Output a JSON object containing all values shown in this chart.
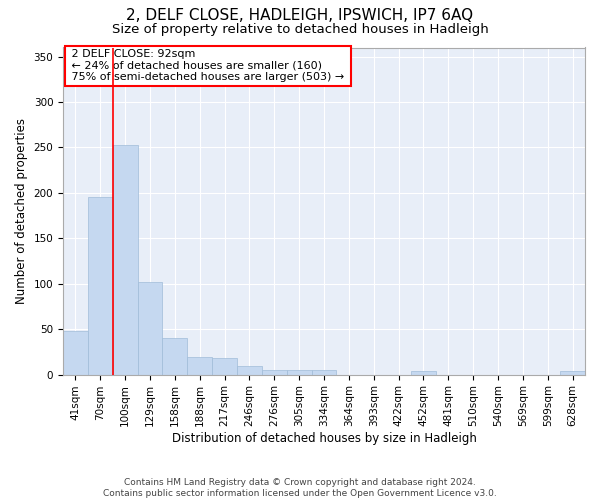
{
  "title1": "2, DELF CLOSE, HADLEIGH, IPSWICH, IP7 6AQ",
  "title2": "Size of property relative to detached houses in Hadleigh",
  "xlabel": "Distribution of detached houses by size in Hadleigh",
  "ylabel": "Number of detached properties",
  "footer1": "Contains HM Land Registry data © Crown copyright and database right 2024.",
  "footer2": "Contains public sector information licensed under the Open Government Licence v3.0.",
  "annotation_line1": "2 DELF CLOSE: 92sqm",
  "annotation_line2": "← 24% of detached houses are smaller (160)",
  "annotation_line3": "75% of semi-detached houses are larger (503) →",
  "bar_categories": [
    "41sqm",
    "70sqm",
    "100sqm",
    "129sqm",
    "158sqm",
    "188sqm",
    "217sqm",
    "246sqm",
    "276sqm",
    "305sqm",
    "334sqm",
    "364sqm",
    "393sqm",
    "422sqm",
    "452sqm",
    "481sqm",
    "510sqm",
    "540sqm",
    "569sqm",
    "599sqm",
    "628sqm"
  ],
  "bar_values": [
    48,
    196,
    253,
    102,
    40,
    19,
    18,
    9,
    5,
    5,
    5,
    0,
    0,
    0,
    4,
    0,
    0,
    0,
    0,
    0,
    4
  ],
  "bar_color": "#c5d8f0",
  "bar_edge_color": "#a0bcd8",
  "red_line_x": 1.5,
  "ylim": [
    0,
    360
  ],
  "yticks": [
    0,
    50,
    100,
    150,
    200,
    250,
    300,
    350
  ],
  "background_color": "#ffffff",
  "plot_bg_color": "#e8eef8",
  "grid_color": "#ffffff",
  "title1_fontsize": 11,
  "title2_fontsize": 9.5,
  "axis_label_fontsize": 8.5,
  "tick_fontsize": 7.5,
  "footer_fontsize": 6.5,
  "annotation_fontsize": 8
}
